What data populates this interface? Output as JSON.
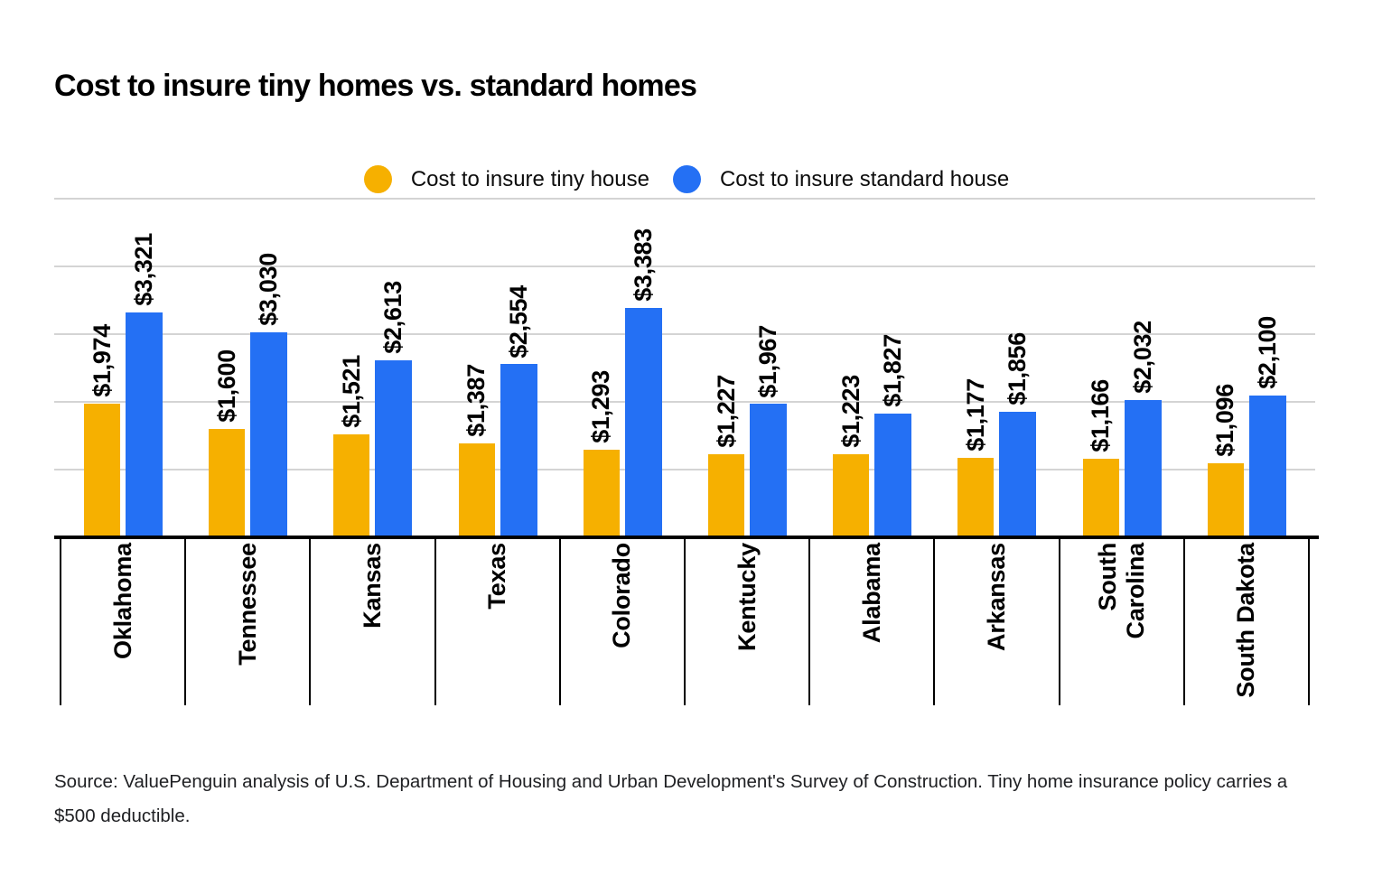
{
  "title": "Cost to insure tiny homes vs. standard homes",
  "legend": {
    "items": [
      {
        "label": "Cost to insure tiny house",
        "color": "#F6B000"
      },
      {
        "label": "Cost to insure standard house",
        "color": "#2470F4"
      }
    ]
  },
  "chart_data": {
    "type": "bar",
    "title": "Cost to insure tiny homes vs. standard homes",
    "categories": [
      "Oklahoma",
      "Tennessee",
      "Kansas",
      "Texas",
      "Colorado",
      "Kentucky",
      "Alabama",
      "Arkansas",
      "South\nCarolina",
      "South Dakota"
    ],
    "series": [
      {
        "name": "Cost to insure tiny house",
        "color": "#F6B000",
        "values": [
          1974,
          1600,
          1521,
          1387,
          1293,
          1227,
          1223,
          1177,
          1166,
          1096
        ],
        "value_labels": [
          "$1,974",
          "$1,600",
          "$1,521",
          "$1,387",
          "$1,293",
          "$1,227",
          "$1,223",
          "$1,177",
          "$1,166",
          "$1,096"
        ]
      },
      {
        "name": "Cost to insure standard house",
        "color": "#2470F4",
        "values": [
          3321,
          3030,
          2613,
          2554,
          3383,
          1967,
          1827,
          1856,
          2032,
          2100
        ],
        "value_labels": [
          "$3,321",
          "$3,030",
          "$2,613",
          "$2,554",
          "$3,383",
          "$1,967",
          "$1,827",
          "$1,856",
          "$2,032",
          "$2,100"
        ]
      }
    ],
    "xlabel": "",
    "ylabel": "",
    "ylim": [
      0,
      5000
    ],
    "gridline_values": [
      1000,
      2000,
      3000,
      4000,
      5000
    ],
    "grid": "horizontal",
    "y_tick_labels_shown": false,
    "legend_position": "top-center",
    "bar_value_labels_rotated": true,
    "category_labels_rotated": true
  },
  "source": {
    "text": "Source: ValuePenguin analysis of U.S. Department of Housing and Urban Development's Survey of Construction. Tiny home insurance policy carries a $500 deductible."
  },
  "colors": {
    "tiny_house": "#F6B000",
    "standard_house": "#2470F4",
    "gridline": "#d4d4d4",
    "axis": "#000000"
  }
}
